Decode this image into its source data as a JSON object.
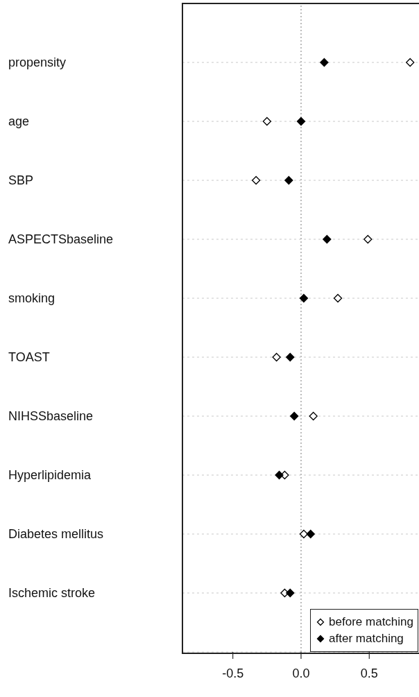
{
  "chart_data": {
    "type": "scatter",
    "orientation": "horizontal",
    "categories": [
      "propensity",
      "age",
      "SBP",
      "ASPECTSbaseline",
      "smoking",
      "TOAST",
      "NIHSSbaseline",
      "Hyperlipidemia",
      "Diabetes mellitus",
      "Ischemic stroke"
    ],
    "series": [
      {
        "name": "before matching",
        "color": "#ffffff",
        "values": [
          0.8,
          -0.25,
          -0.33,
          0.49,
          0.27,
          -0.18,
          0.09,
          -0.12,
          0.02,
          -0.12
        ]
      },
      {
        "name": "after matching",
        "color": "#000000",
        "values": [
          0.17,
          0.0,
          -0.09,
          0.19,
          0.02,
          -0.08,
          -0.05,
          -0.16,
          0.07,
          -0.08
        ]
      }
    ],
    "xlim": [
      -0.87,
      0.86
    ],
    "xticks": [
      -0.5,
      {
        "value": 0,
        "label": "0.0"
      },
      0.5
    ],
    "grid": "y",
    "marker": "diamond",
    "legend": "bottom right",
    "ref_lines": [
      {
        "axis": "x",
        "value": 0,
        "line_style": "dotted",
        "color": "#bbbbbb"
      }
    ]
  }
}
